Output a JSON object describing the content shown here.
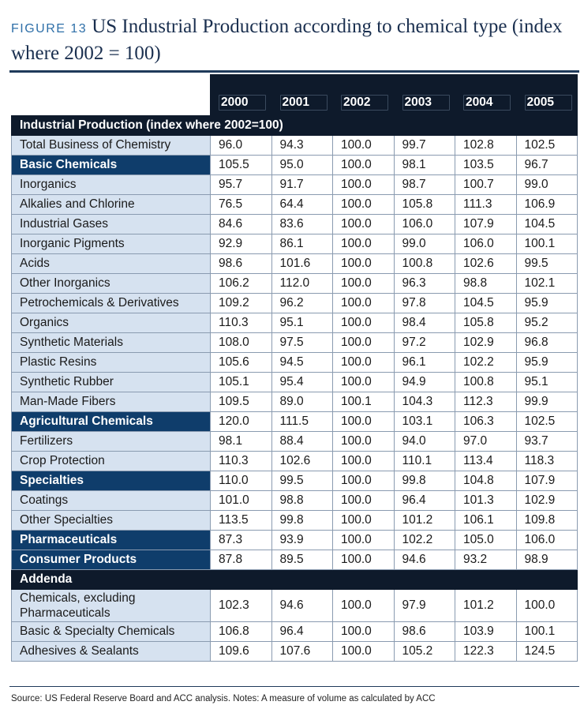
{
  "figure": {
    "label": "FIGURE 13",
    "title": "US Industrial Production according to chemical type (index where 2002 = 100)"
  },
  "table": {
    "years": [
      "2000",
      "2001",
      "2002",
      "2003",
      "2004",
      "2005"
    ],
    "section_main": "Industrial Production (index where 2002=100)",
    "rows": [
      {
        "label": "Total Business of Chemistry",
        "category": false,
        "values": [
          "96.0",
          "94.3",
          "100.0",
          "99.7",
          "102.8",
          "102.5"
        ]
      },
      {
        "label": "Basic Chemicals",
        "category": true,
        "values": [
          "105.5",
          "95.0",
          "100.0",
          "98.1",
          "103.5",
          "96.7"
        ]
      },
      {
        "label": "Inorganics",
        "category": false,
        "values": [
          "95.7",
          "91.7",
          "100.0",
          "98.7",
          "100.7",
          "99.0"
        ]
      },
      {
        "label": "Alkalies and Chlorine",
        "category": false,
        "values": [
          "76.5",
          "64.4",
          "100.0",
          "105.8",
          "111.3",
          "106.9"
        ]
      },
      {
        "label": "Industrial Gases",
        "category": false,
        "values": [
          "84.6",
          "83.6",
          "100.0",
          "106.0",
          "107.9",
          "104.5"
        ]
      },
      {
        "label": "Inorganic Pigments",
        "category": false,
        "values": [
          "92.9",
          "86.1",
          "100.0",
          "99.0",
          "106.0",
          "100.1"
        ]
      },
      {
        "label": "Acids",
        "category": false,
        "values": [
          "98.6",
          "101.6",
          "100.0",
          "100.8",
          "102.6",
          "99.5"
        ]
      },
      {
        "label": "Other Inorganics",
        "category": false,
        "values": [
          "106.2",
          "112.0",
          "100.0",
          "96.3",
          "98.8",
          "102.1"
        ]
      },
      {
        "label": "Petrochemicals & Derivatives",
        "category": false,
        "values": [
          "109.2",
          "96.2",
          "100.0",
          "97.8",
          "104.5",
          "95.9"
        ]
      },
      {
        "label": "Organics",
        "category": false,
        "values": [
          "110.3",
          "95.1",
          "100.0",
          "98.4",
          "105.8",
          "95.2"
        ]
      },
      {
        "label": "Synthetic Materials",
        "category": false,
        "values": [
          "108.0",
          "97.5",
          "100.0",
          "97.2",
          "102.9",
          "96.8"
        ]
      },
      {
        "label": "Plastic Resins",
        "category": false,
        "values": [
          "105.6",
          "94.5",
          "100.0",
          "96.1",
          "102.2",
          "95.9"
        ]
      },
      {
        "label": "Synthetic Rubber",
        "category": false,
        "values": [
          "105.1",
          "95.4",
          "100.0",
          "94.9",
          "100.8",
          "95.1"
        ]
      },
      {
        "label": "Man-Made Fibers",
        "category": false,
        "values": [
          "109.5",
          "89.0",
          "100.1",
          "104.3",
          "112.3",
          "99.9"
        ]
      },
      {
        "label": "Agricultural Chemicals",
        "category": true,
        "values": [
          "120.0",
          "111.5",
          "100.0",
          "103.1",
          "106.3",
          "102.5"
        ]
      },
      {
        "label": "Fertilizers",
        "category": false,
        "values": [
          "98.1",
          "88.4",
          "100.0",
          "94.0",
          "97.0",
          "93.7"
        ]
      },
      {
        "label": "Crop Protection",
        "category": false,
        "values": [
          "110.3",
          "102.6",
          "100.0",
          "110.1",
          "113.4",
          "118.3"
        ]
      },
      {
        "label": "Specialties",
        "category": true,
        "values": [
          "110.0",
          "99.5",
          "100.0",
          "99.8",
          "104.8",
          "107.9"
        ]
      },
      {
        "label": "Coatings",
        "category": false,
        "values": [
          "101.0",
          "98.8",
          "100.0",
          "96.4",
          "101.3",
          "102.9"
        ]
      },
      {
        "label": "Other Specialties",
        "category": false,
        "values": [
          "113.5",
          "99.8",
          "100.0",
          "101.2",
          "106.1",
          "109.8"
        ]
      },
      {
        "label": "Pharmaceuticals",
        "category": true,
        "values": [
          "87.3",
          "93.9",
          "100.0",
          "102.2",
          "105.0",
          "106.0"
        ]
      },
      {
        "label": "Consumer Products",
        "category": true,
        "values": [
          "87.8",
          "89.5",
          "100.0",
          "94.6",
          "93.2",
          "98.9"
        ]
      }
    ],
    "section_addenda": "Addenda",
    "addenda_rows": [
      {
        "label": "Chemicals, excluding Pharmaceuticals",
        "tall": true,
        "values": [
          "102.3",
          "94.6",
          "100.0",
          "97.9",
          "101.2",
          "100.0"
        ]
      },
      {
        "label": "Basic & Specialty Chemicals",
        "tall": false,
        "values": [
          "106.8",
          "96.4",
          "100.0",
          "98.6",
          "103.9",
          "100.1"
        ]
      },
      {
        "label": "Adhesives & Sealants",
        "tall": false,
        "values": [
          "109.6",
          "107.6",
          "100.0",
          "105.2",
          "122.3",
          "124.5"
        ]
      }
    ]
  },
  "footer": {
    "source": "Source: US Federal Reserve Board and ACC analysis. Notes: A measure of volume as calculated by ACC"
  },
  "colors": {
    "header_dark": "#0e1a2b",
    "category_blue": "#0f3d6b",
    "label_light": "#d6e2f0",
    "figure_label": "#2e6fa8",
    "title": "#1a2f4f"
  }
}
